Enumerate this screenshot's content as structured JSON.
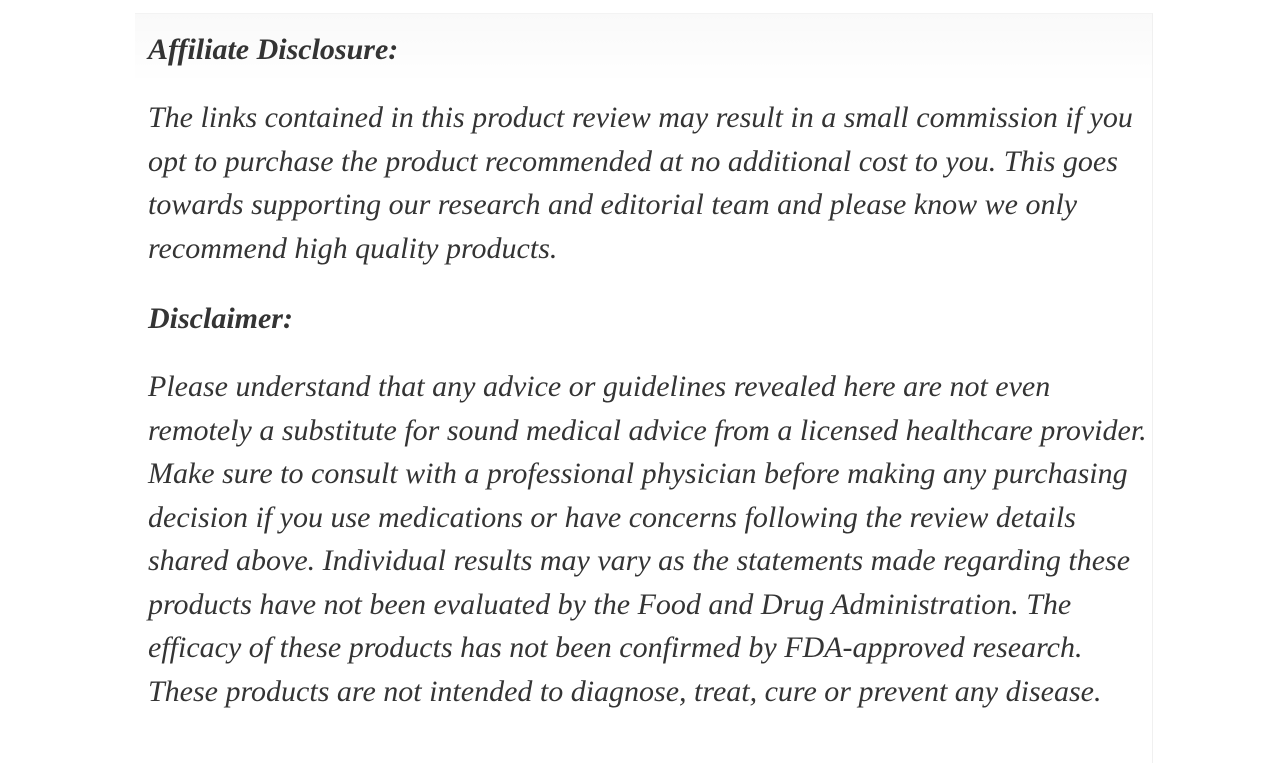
{
  "page": {
    "background_color": "#ffffff",
    "text_color": "#343434",
    "column_border_color": "#f0f0f0"
  },
  "article": {
    "sections": [
      {
        "heading": "Affiliate Disclosure:",
        "paragraphs": [
          "The links contained in this product review may result in a small commission if you opt to purchase the product recommended at no additional cost to you. This goes towards supporting our research and editorial team and please know we only recommend high quality products."
        ]
      },
      {
        "heading": "Disclaimer:",
        "paragraphs": [
          "Please understand that any advice or guidelines revealed here are not even remotely a substitute for sound medical advice from a licensed healthcare provider. Make sure to consult with a professional physician before making any purchasing decision if you use medications or have concerns following the review details shared above. Individual results may vary as the statements made regarding these products have not been evaluated by the Food and Drug Administration. The efficacy of these products has not been confirmed by FDA-approved research. These products are not intended to diagnose, treat, cure or prevent any disease."
        ]
      }
    ]
  }
}
